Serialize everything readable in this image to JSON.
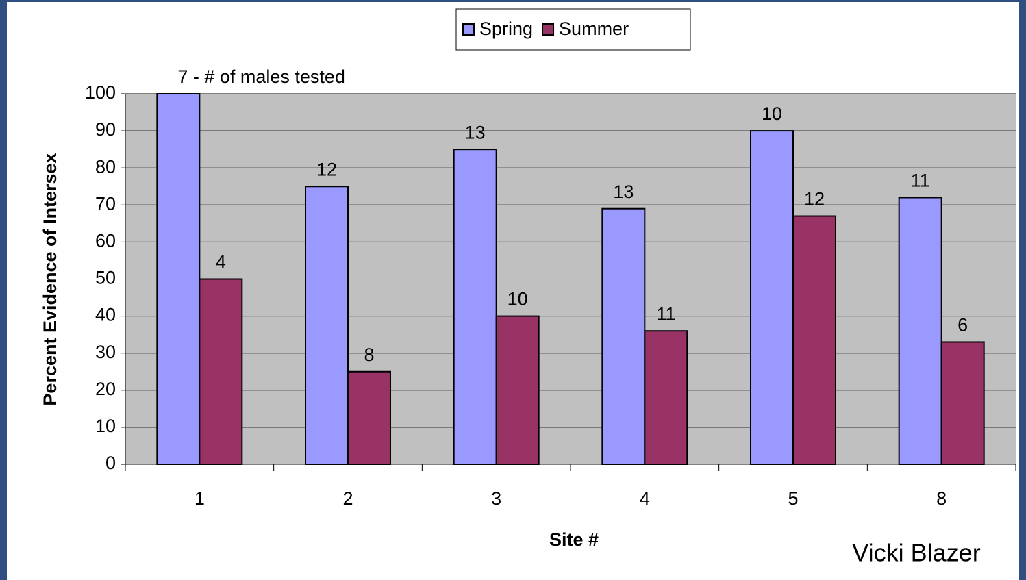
{
  "chart_data": {
    "type": "bar",
    "categories": [
      "1",
      "2",
      "3",
      "4",
      "5",
      "8"
    ],
    "series": [
      {
        "name": "Spring",
        "color": "#9999ff",
        "values": [
          100,
          75,
          85,
          69,
          90,
          72
        ],
        "bar_labels": [
          "7 - # of males tested",
          "12",
          "13",
          "13",
          "10",
          "11"
        ]
      },
      {
        "name": "Summer",
        "color": "#993366",
        "values": [
          50,
          25,
          40,
          36,
          67,
          33
        ],
        "bar_labels": [
          "4",
          "8",
          "10",
          "11",
          "12",
          "6"
        ]
      }
    ],
    "ylim": [
      0,
      100
    ],
    "yticks": [
      0,
      10,
      20,
      30,
      40,
      50,
      60,
      70,
      80,
      90,
      100
    ],
    "grid": true,
    "x_label": "Site #",
    "y_label": "Percent Evidence of Intersex",
    "credit": "Vicki Blazer",
    "legend": "top"
  }
}
